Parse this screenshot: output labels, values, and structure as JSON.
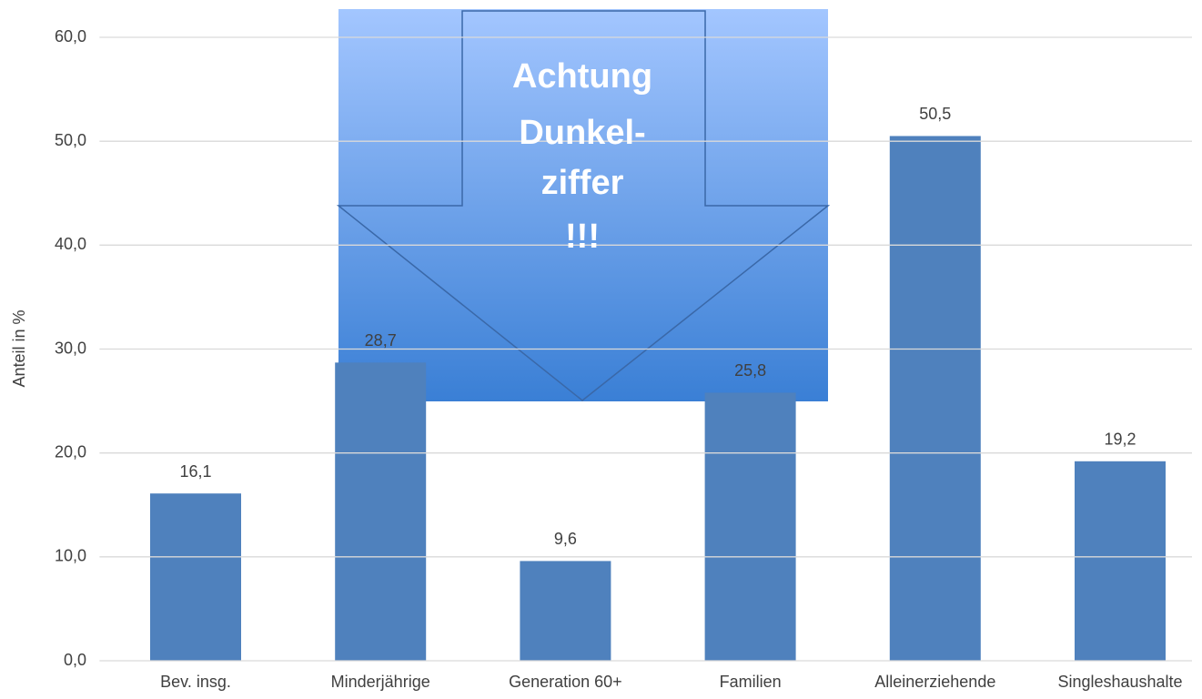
{
  "chart_data": {
    "type": "bar",
    "categories": [
      "Bev. insg.",
      "Minderjährige",
      "Generation 60+",
      "Familien",
      "Alleinerziehende",
      "Singleshaushalte"
    ],
    "values": [
      16.1,
      28.7,
      9.6,
      25.8,
      50.5,
      19.2
    ],
    "value_labels": [
      "16,1",
      "28,7",
      "9,6",
      "25,8",
      "50,5",
      "19,2"
    ],
    "color": "#4f81bd",
    "ylabel": "Anteil in %",
    "ylim": [
      0,
      60
    ],
    "yticks": [
      {
        "value": 0,
        "label": "0,0"
      },
      {
        "value": 10,
        "label": "10,0"
      },
      {
        "value": 20,
        "label": "20,0"
      },
      {
        "value": 30,
        "label": "30,0"
      },
      {
        "value": 40,
        "label": "40,0"
      },
      {
        "value": 50,
        "label": "50,0"
      },
      {
        "value": 60,
        "label": "60,0"
      }
    ],
    "grid": true,
    "annotation": [
      "Achtung",
      "Dunkel-",
      "ziffer",
      "!!!"
    ]
  }
}
